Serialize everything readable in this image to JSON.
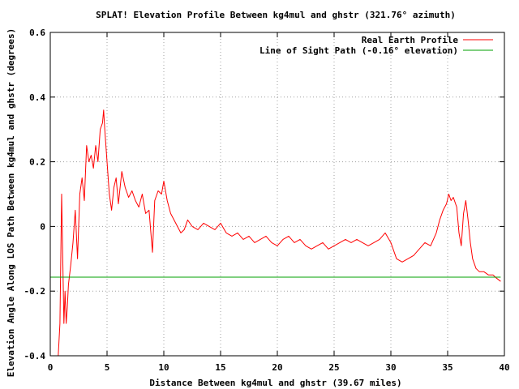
{
  "chart_data": {
    "type": "line",
    "title": "SPLAT! Elevation Profile Between kg4mul and ghstr (321.76° azimuth)",
    "xlabel": "Distance Between kg4mul and ghstr (39.67 miles)",
    "ylabel": "Elevation Angle Along LOS Path Between kg4mul and ghstr (degrees)",
    "xlim": [
      0,
      40
    ],
    "ylim": [
      -0.4,
      0.6
    ],
    "x_ticks": [
      0,
      5,
      10,
      15,
      20,
      25,
      30,
      35,
      40
    ],
    "x_tick_labels": [
      "0",
      "5",
      "10",
      "15",
      "20",
      "25",
      "30",
      "35",
      "40"
    ],
    "y_ticks": [
      -0.4,
      -0.2,
      0,
      0.2,
      0.4,
      0.6
    ],
    "y_tick_labels": [
      "-0.4",
      "-0.2",
      "0",
      "0.2",
      "0.4",
      "0.6"
    ],
    "grid": true,
    "legend_position": "top-right",
    "series": [
      {
        "name": "Real Earth Profile",
        "color": "#ff0000",
        "x": [
          0.7,
          0.85,
          1.0,
          1.1,
          1.2,
          1.3,
          1.4,
          1.5,
          1.6,
          1.8,
          2.0,
          2.2,
          2.4,
          2.6,
          2.8,
          3.0,
          3.2,
          3.4,
          3.6,
          3.8,
          4.0,
          4.2,
          4.4,
          4.6,
          4.7,
          4.8,
          5.0,
          5.2,
          5.4,
          5.6,
          5.8,
          6.0,
          6.3,
          6.6,
          6.9,
          7.2,
          7.5,
          7.8,
          8.1,
          8.4,
          8.7,
          9.0,
          9.2,
          9.5,
          9.8,
          10.0,
          10.3,
          10.6,
          10.9,
          11.2,
          11.5,
          11.8,
          12.1,
          12.5,
          13.0,
          13.5,
          14.0,
          14.5,
          15.0,
          15.5,
          16.0,
          16.5,
          17.0,
          17.5,
          18.0,
          18.5,
          19.0,
          19.5,
          20.0,
          20.5,
          21.0,
          21.5,
          22.0,
          22.5,
          23.0,
          23.5,
          24.0,
          24.5,
          25.0,
          25.5,
          26.0,
          26.5,
          27.0,
          27.5,
          28.0,
          28.5,
          29.0,
          29.5,
          30.0,
          30.5,
          31.0,
          31.5,
          32.0,
          32.5,
          33.0,
          33.5,
          34.0,
          34.3,
          34.6,
          34.9,
          35.1,
          35.3,
          35.5,
          35.8,
          36.0,
          36.2,
          36.4,
          36.6,
          36.8,
          37.0,
          37.2,
          37.5,
          37.8,
          38.2,
          38.6,
          39.0,
          39.3,
          39.67
        ],
        "y": [
          -0.4,
          -0.3,
          0.1,
          -0.1,
          -0.3,
          -0.2,
          -0.3,
          -0.25,
          -0.18,
          -0.12,
          -0.05,
          0.05,
          -0.1,
          0.1,
          0.15,
          0.08,
          0.25,
          0.2,
          0.22,
          0.18,
          0.25,
          0.2,
          0.3,
          0.32,
          0.36,
          0.3,
          0.2,
          0.1,
          0.05,
          0.12,
          0.15,
          0.07,
          0.17,
          0.12,
          0.09,
          0.11,
          0.08,
          0.06,
          0.1,
          0.04,
          0.05,
          -0.08,
          0.08,
          0.11,
          0.1,
          0.14,
          0.08,
          0.04,
          0.02,
          0.0,
          -0.02,
          -0.01,
          0.02,
          0.0,
          -0.01,
          0.01,
          0.0,
          -0.01,
          0.01,
          -0.02,
          -0.03,
          -0.02,
          -0.04,
          -0.03,
          -0.05,
          -0.04,
          -0.03,
          -0.05,
          -0.06,
          -0.04,
          -0.03,
          -0.05,
          -0.04,
          -0.06,
          -0.07,
          -0.06,
          -0.05,
          -0.07,
          -0.06,
          -0.05,
          -0.04,
          -0.05,
          -0.04,
          -0.05,
          -0.06,
          -0.05,
          -0.04,
          -0.02,
          -0.05,
          -0.1,
          -0.11,
          -0.1,
          -0.09,
          -0.07,
          -0.05,
          -0.06,
          -0.02,
          0.02,
          0.05,
          0.07,
          0.1,
          0.08,
          0.09,
          0.06,
          -0.02,
          -0.06,
          0.04,
          0.08,
          0.02,
          -0.05,
          -0.1,
          -0.13,
          -0.14,
          -0.14,
          -0.15,
          -0.15,
          -0.16,
          -0.17
        ]
      },
      {
        "name": "Line of Sight Path (-0.16° elevation)",
        "color": "#00a000",
        "x": [
          0,
          39.67
        ],
        "y": [
          -0.157,
          -0.157
        ]
      }
    ]
  }
}
